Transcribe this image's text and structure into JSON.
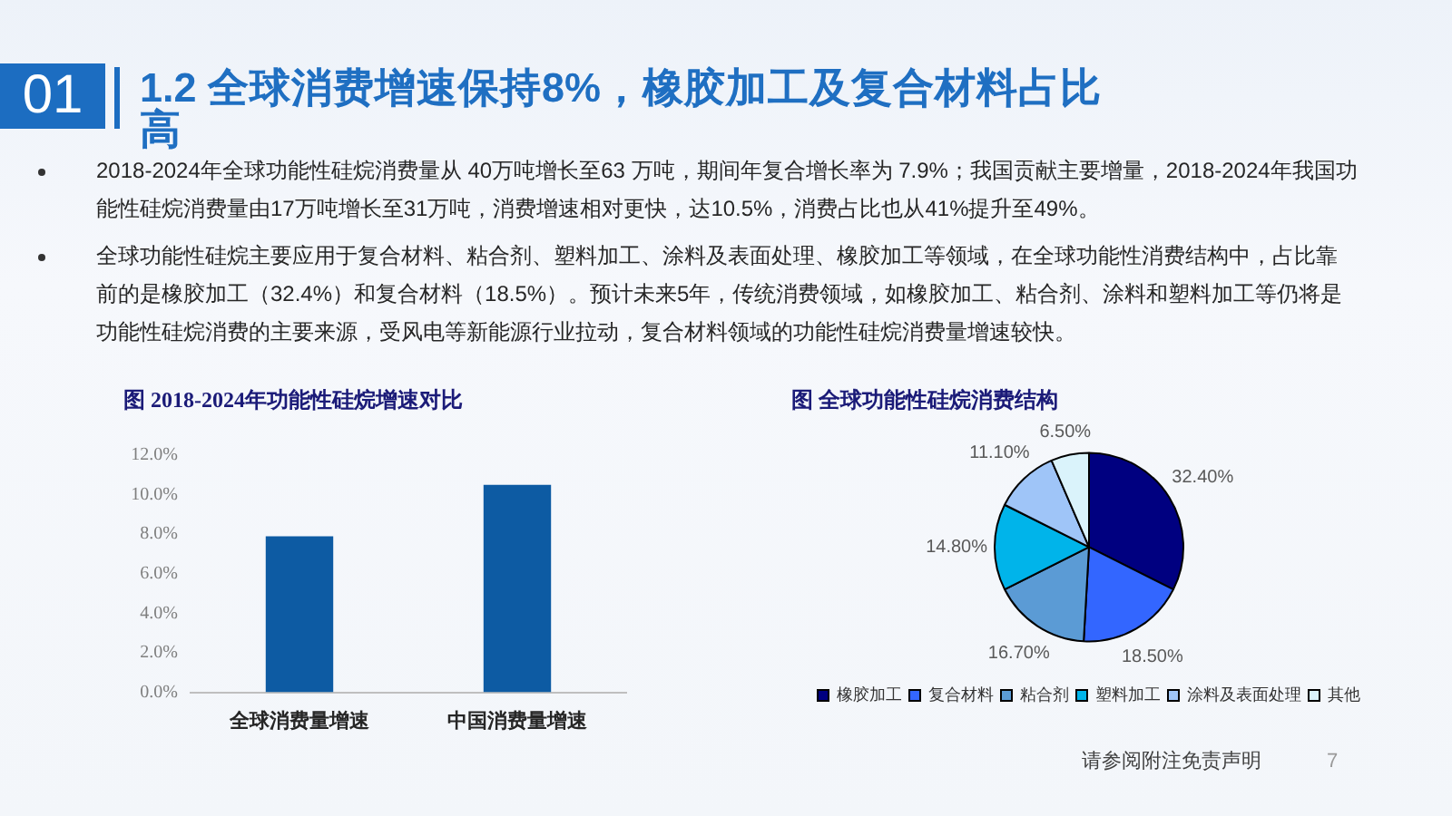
{
  "chart_data": [
    {
      "type": "other",
      "title": "1.2 全球消费增速保持8%，橡胶加工及复合材料占比高",
      "annotations": [
        "01",
        "2018-2024年全球功能性硅烷消费量从 40万吨增长至63 万吨，期间年复合增长率为 7.9%；我国贡献主要增量，2018-2024年我国功能性硅烷消费量由17万吨增长至31万吨，消费增速相对更快，达10.5%，消费占比也从41%提升至49%。",
        "全球功能性硅烷主要应用于复合材料、粘合剂、塑料加工、涂料及表面处理、橡胶加工等领域，在全球功能性消费结构中，占比靠前的是橡胶加工（32.4%）和复合材料（18.5%）。预计未来5年，传统消费领域，如橡胶加工、粘合剂、涂料和塑料加工等仍将是功能性硅烷消费的主要来源，受风电等新能源行业拉动，复合材料领域的功能性硅烷消费量增速较快。",
        "请参阅附注免责声明",
        "7"
      ]
    },
    {
      "type": "bar",
      "title": "图 2018-2024年功能性硅烷增速对比",
      "categories": [
        "全球消费量增速",
        "中国消费量增速"
      ],
      "values": [
        7.9,
        10.5
      ],
      "color": "#0d5ba3",
      "ylim": [
        0,
        12
      ],
      "yticks": [
        {
          "value": 0,
          "label": "0.0%"
        },
        {
          "value": 2,
          "label": "2.0%"
        },
        {
          "value": 4,
          "label": "4.0%"
        },
        {
          "value": 6,
          "label": "6.0%"
        },
        {
          "value": 8,
          "label": "8.0%"
        },
        {
          "value": 10,
          "label": "10.0%"
        },
        {
          "value": 12,
          "label": "12.0%"
        }
      ],
      "grid": false,
      "legend": false
    },
    {
      "type": "pie",
      "title": "图 全球功能性硅烷消费结构",
      "categories": [
        "橡胶加工",
        "复合材料",
        "粘合剂",
        "塑料加工",
        "涂料及表面处理",
        "其他"
      ],
      "values": [
        32.4,
        18.5,
        16.7,
        14.8,
        11.1,
        6.5
      ],
      "colors": [
        "#000080",
        "#3366ff",
        "#5b9bd5",
        "#00b4ea",
        "#9fc5f8",
        "#daf3fb"
      ],
      "value_labels": [
        "32.40%",
        "18.50%",
        "16.70%",
        "14.80%",
        "11.10%",
        "6.50%"
      ],
      "legend": "bottom"
    }
  ]
}
